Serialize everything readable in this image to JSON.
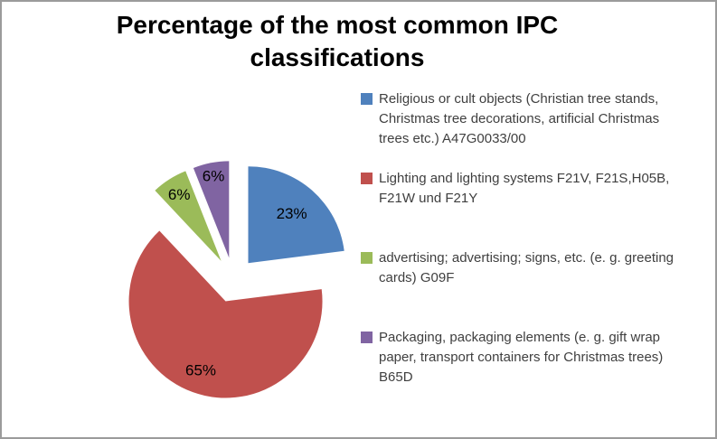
{
  "chart_data": {
    "type": "pie",
    "title": "Percentage of the most common IPC classifications",
    "legend_position": "right",
    "start_angle_deg": 0,
    "direction": "clockwise",
    "exploded": true,
    "background_color": "#ffffff",
    "border_color": "#9b9b9b",
    "slices": [
      {
        "label": "Religious or cult objects (Christian tree stands, Christmas tree decorations, artificial Christmas trees etc.) A47G0033/00",
        "value": 23,
        "display": "23%",
        "color": "#4F81BD"
      },
      {
        "label": "Lighting and lighting systems F21V, F21S,H05B, F21W und F21Y",
        "value": 65,
        "display": "65%",
        "color": "#C0504D"
      },
      {
        "label": "advertising; advertising; signs, etc. (e. g. greeting cards) G09F",
        "value": 6,
        "display": "6%",
        "color": "#9BBB59"
      },
      {
        "label": "Packaging, packaging elements (e. g. gift wrap paper, transport containers for Christmas trees) B65D",
        "value": 6,
        "display": "6%",
        "color": "#8064A2"
      }
    ]
  }
}
